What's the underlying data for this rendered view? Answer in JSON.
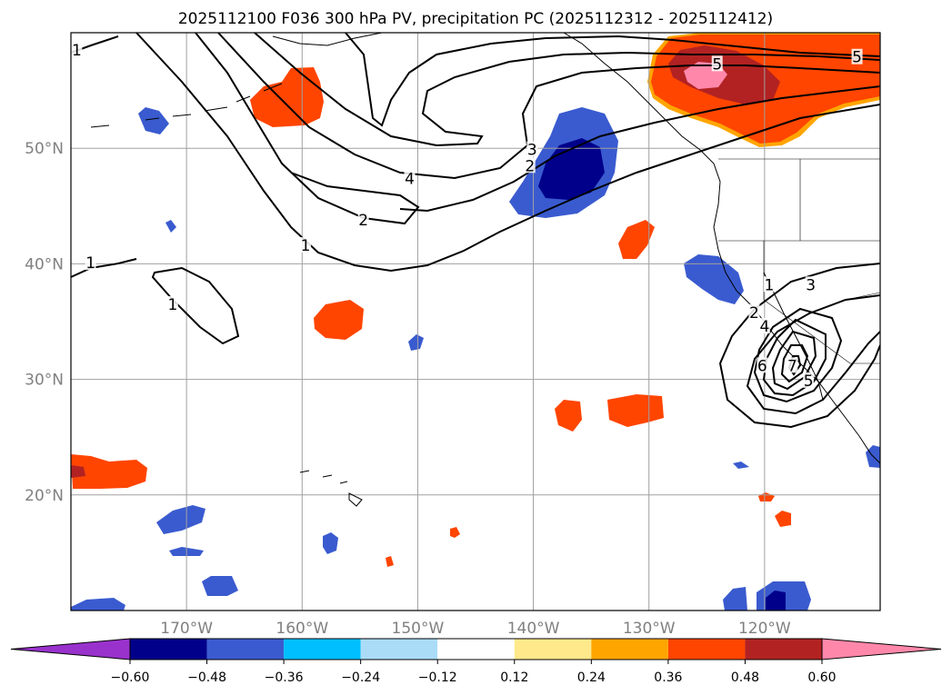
{
  "chart_data": {
    "type": "contour_map",
    "title": "2025112100 F036 300 hPa PV, precipitation PC (2025112312 - 2025112412)",
    "map": {
      "lon_range": [
        -180,
        -110
      ],
      "lat_range": [
        10,
        60
      ],
      "x_ticks": [
        {
          "lon": -170,
          "label": "170°W"
        },
        {
          "lon": -160,
          "label": "160°W"
        },
        {
          "lon": -150,
          "label": "150°W"
        },
        {
          "lon": -140,
          "label": "140°W"
        },
        {
          "lon": -130,
          "label": "130°W"
        },
        {
          "lon": -120,
          "label": "120°W"
        }
      ],
      "y_ticks": [
        {
          "lat": 50,
          "label": "50°N"
        },
        {
          "lat": 40,
          "label": "40°N"
        },
        {
          "lat": 30,
          "label": "30°N"
        },
        {
          "lat": 20,
          "label": "20°N"
        }
      ],
      "grid": true
    },
    "colorbar": {
      "levels": [
        -0.6,
        -0.48,
        -0.36,
        -0.24,
        -0.12,
        0.12,
        0.24,
        0.36,
        0.48,
        0.6
      ],
      "tick_labels": [
        "−0.60",
        "−0.48",
        "−0.36",
        "−0.24",
        "−0.12",
        "0.12",
        "0.24",
        "0.36",
        "0.48",
        "0.60"
      ],
      "colors": [
        "#9932cc",
        "#00008b",
        "#3a5bcf",
        "#00bfff",
        "#aadcf7",
        "#ffffff",
        "#ffe98a",
        "#ffa500",
        "#ff4500",
        "#b22222",
        "#ff88aa"
      ],
      "extend": "both"
    },
    "pv_contour_labels": [
      {
        "text": "1",
        "lon": -179.5,
        "lat": 58.5
      },
      {
        "text": "4",
        "lon": -150.7,
        "lat": 47.4
      },
      {
        "text": "3",
        "lon": -140.1,
        "lat": 49.9
      },
      {
        "text": "2",
        "lon": -140.3,
        "lat": 48.5
      },
      {
        "text": "2",
        "lon": -154.7,
        "lat": 43.8
      },
      {
        "text": "1",
        "lon": -159.7,
        "lat": 41.6
      },
      {
        "text": "1",
        "lon": -178.3,
        "lat": 40.1
      },
      {
        "text": "1",
        "lon": -171.2,
        "lat": 36.5
      },
      {
        "text": "5",
        "lon": -124.1,
        "lat": 57.3
      },
      {
        "text": "5",
        "lon": -112,
        "lat": 57.9
      },
      {
        "text": "3",
        "lon": -116,
        "lat": 38.2
      },
      {
        "text": "1",
        "lon": -119.6,
        "lat": 38.2
      },
      {
        "text": "2",
        "lon": -120.9,
        "lat": 35.8
      },
      {
        "text": "4",
        "lon": -120,
        "lat": 34.6
      },
      {
        "text": "6",
        "lon": -120.2,
        "lat": 31.2
      },
      {
        "text": "7",
        "lon": -117.6,
        "lat": 31.2
      },
      {
        "text": "5",
        "lon": -116.2,
        "lat": 29.9
      }
    ]
  }
}
